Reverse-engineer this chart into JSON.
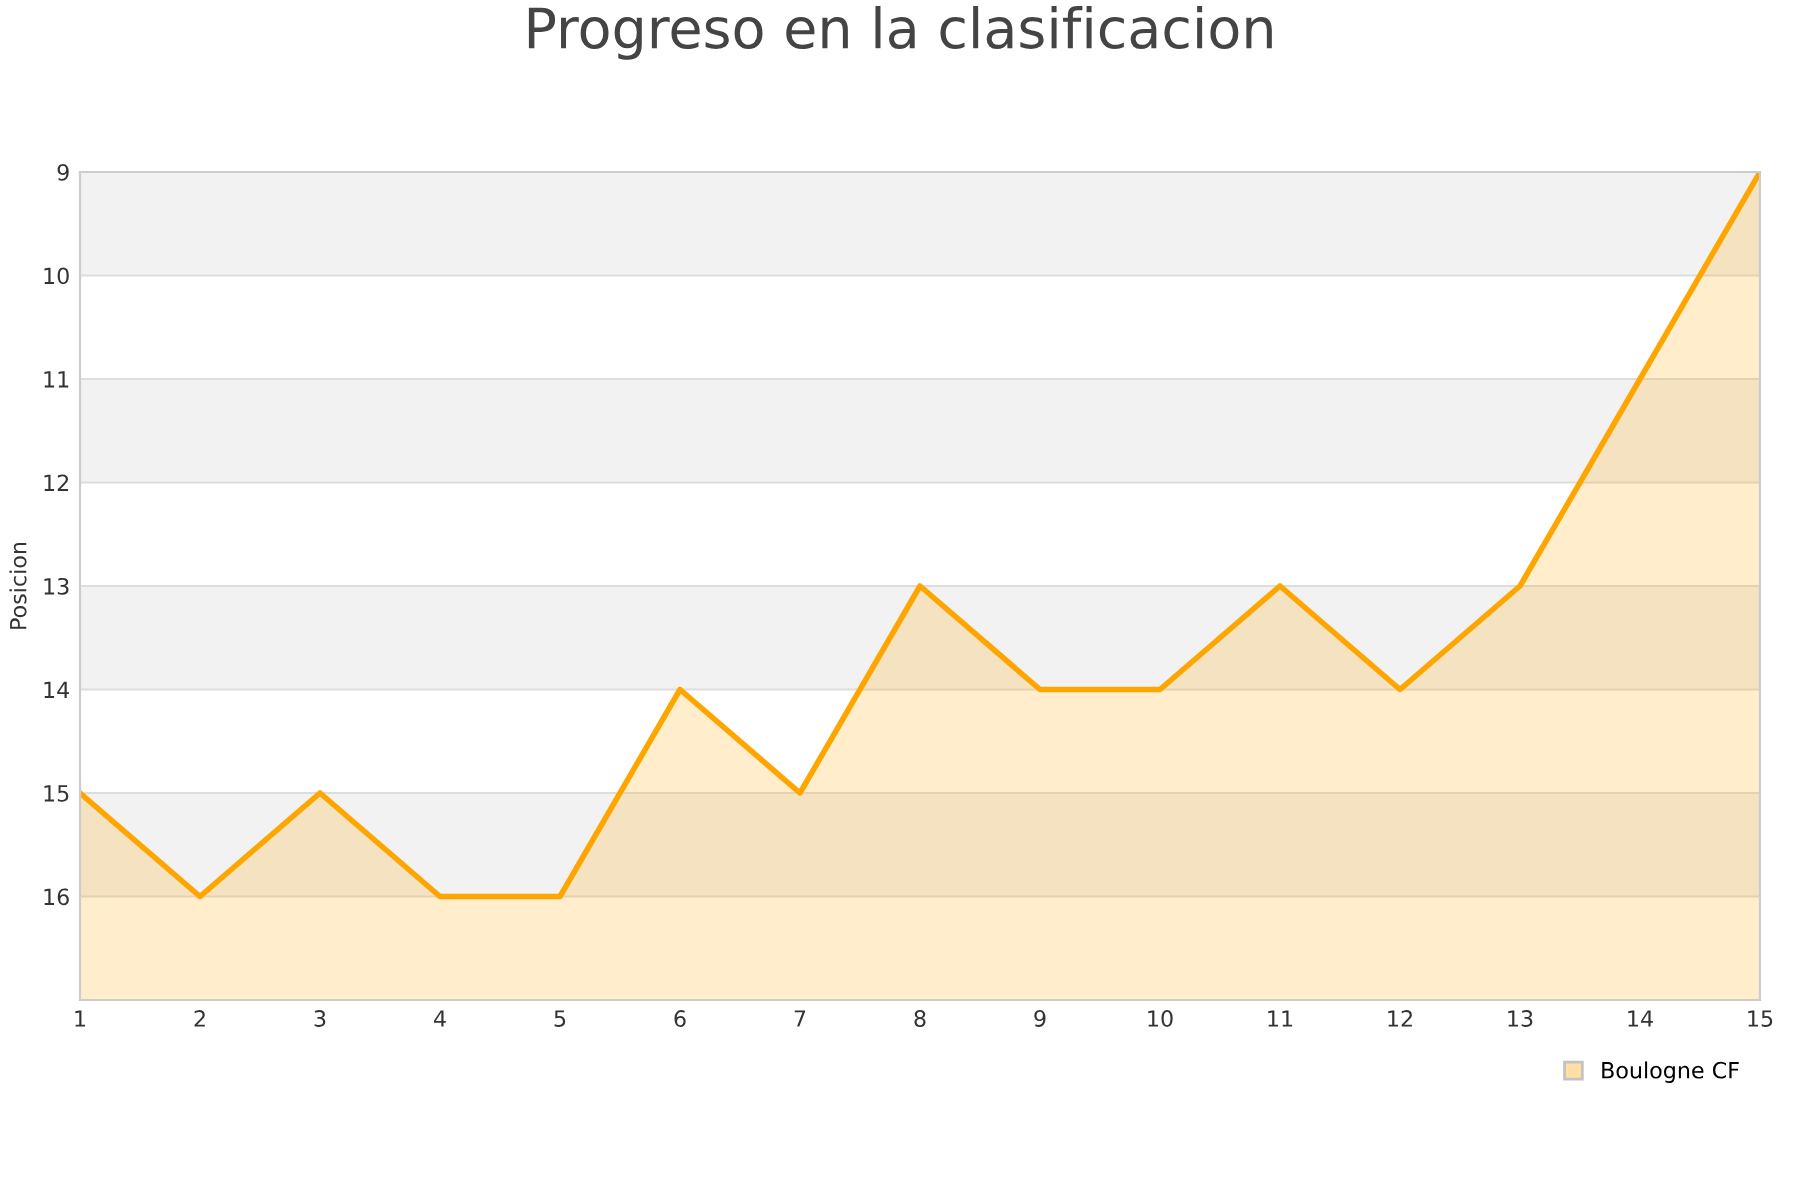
{
  "chart_data": {
    "type": "area",
    "title": "Progreso en la clasificacion",
    "ylabel": "Posicion",
    "x": [
      1,
      2,
      3,
      4,
      5,
      6,
      7,
      8,
      9,
      10,
      11,
      12,
      13,
      14,
      15
    ],
    "series": [
      {
        "name": "Boulogne CF",
        "color": "#ffa500",
        "values": [
          15,
          16,
          15,
          16,
          16,
          14,
          15,
          13,
          14,
          14,
          13,
          14,
          13,
          11,
          9
        ]
      }
    ],
    "xlim": [
      1,
      15
    ],
    "xticks": [
      1,
      2,
      3,
      4,
      5,
      6,
      7,
      8,
      9,
      10,
      11,
      12,
      13,
      14,
      15
    ],
    "ylim": [
      17,
      9
    ],
    "yticks": [
      9,
      10,
      11,
      12,
      13,
      14,
      15,
      16
    ],
    "grid": "y",
    "legend": "bottom right",
    "marker": "none",
    "line_style": "solid"
  }
}
